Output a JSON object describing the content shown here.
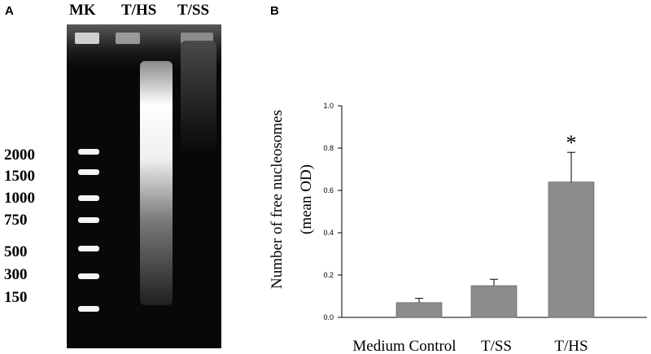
{
  "panel_a": {
    "label": "A",
    "lanes": [
      "MK",
      "T/HS",
      "T/SS"
    ],
    "marker_sizes": [
      "2000",
      "1500",
      "1000",
      "750",
      "500",
      "300",
      "150"
    ]
  },
  "panel_b": {
    "label": "B",
    "chart_data": {
      "type": "bar",
      "categories": [
        "Medium Control",
        "T/SS",
        "T/HS"
      ],
      "values": [
        0.07,
        0.15,
        0.64
      ],
      "errors": [
        0.02,
        0.03,
        0.14
      ],
      "annotations": [
        {
          "category": "T/HS",
          "text": "*"
        }
      ],
      "title": "",
      "xlabel": "",
      "ylabel": "Number of free nucleosomes (mean OD)",
      "ylabel_lines": [
        "Number of free nucleosomes",
        "(mean OD)"
      ],
      "ylim": [
        0.0,
        1.0
      ],
      "yticks": [
        "0.0",
        "0.2",
        "0.4",
        "0.6",
        "0.8",
        "1.0"
      ],
      "bar_color": "#8c8c8c",
      "grid": false
    }
  }
}
